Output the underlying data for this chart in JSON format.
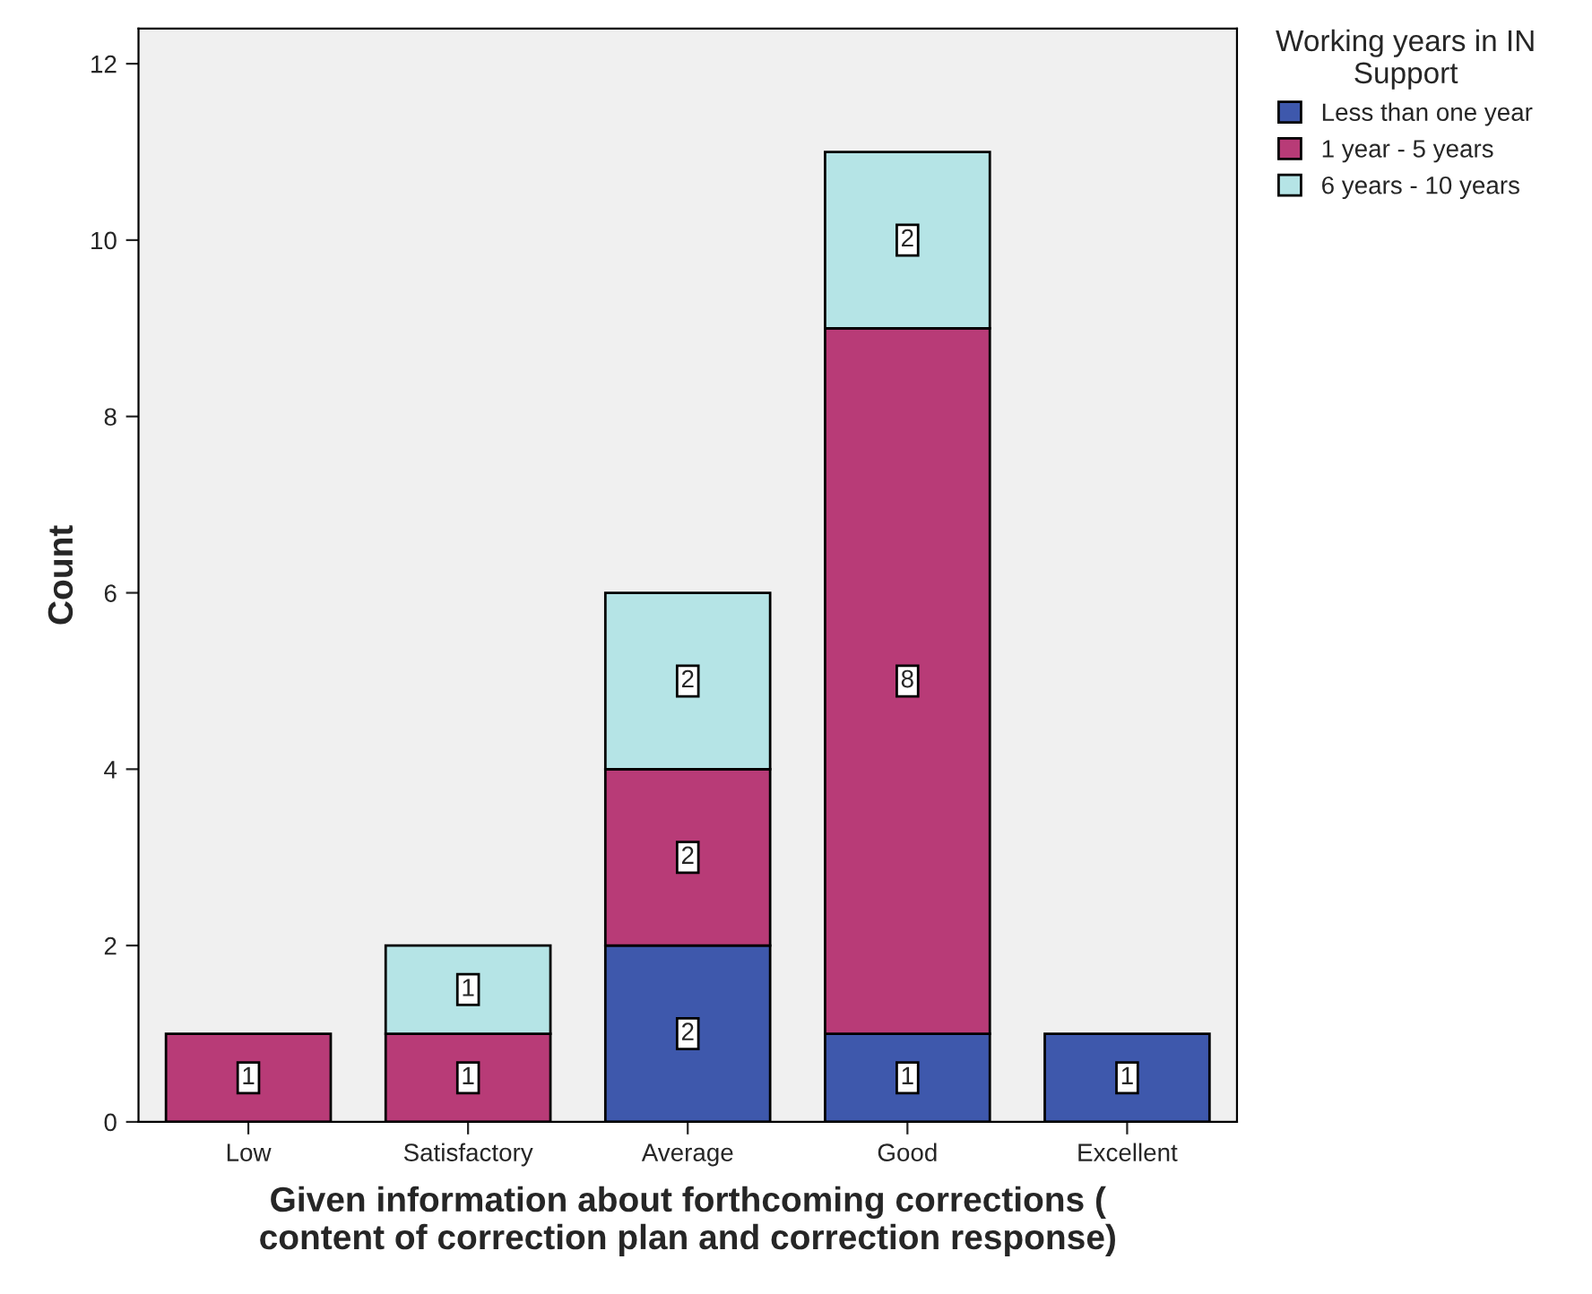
{
  "chart_data": {
    "type": "bar",
    "stacked": true,
    "categories": [
      "Low",
      "Satisfactory",
      "Average",
      "Good",
      "Excellent"
    ],
    "series": [
      {
        "name": "Less than one year",
        "color": "#3e58ac",
        "values": [
          null,
          null,
          2,
          1,
          1
        ]
      },
      {
        "name": "1 year - 5 years",
        "color": "#b83b77",
        "values": [
          1,
          1,
          2,
          8,
          null
        ]
      },
      {
        "name": "6 years - 10 years",
        "color": "#b5e4e6",
        "values": [
          null,
          1,
          2,
          2,
          null
        ]
      }
    ],
    "xlabel": "Given information about forthcoming corrections (\ncontent of correction plan and correction response)",
    "ylabel": "Count",
    "legend_title": "Working years in IN\nSupport",
    "legend": "top right",
    "ylim": [
      0,
      12.4
    ],
    "yticks": [
      0,
      2,
      4,
      6,
      8,
      10,
      12
    ],
    "grid": false,
    "data_labels": true
  }
}
